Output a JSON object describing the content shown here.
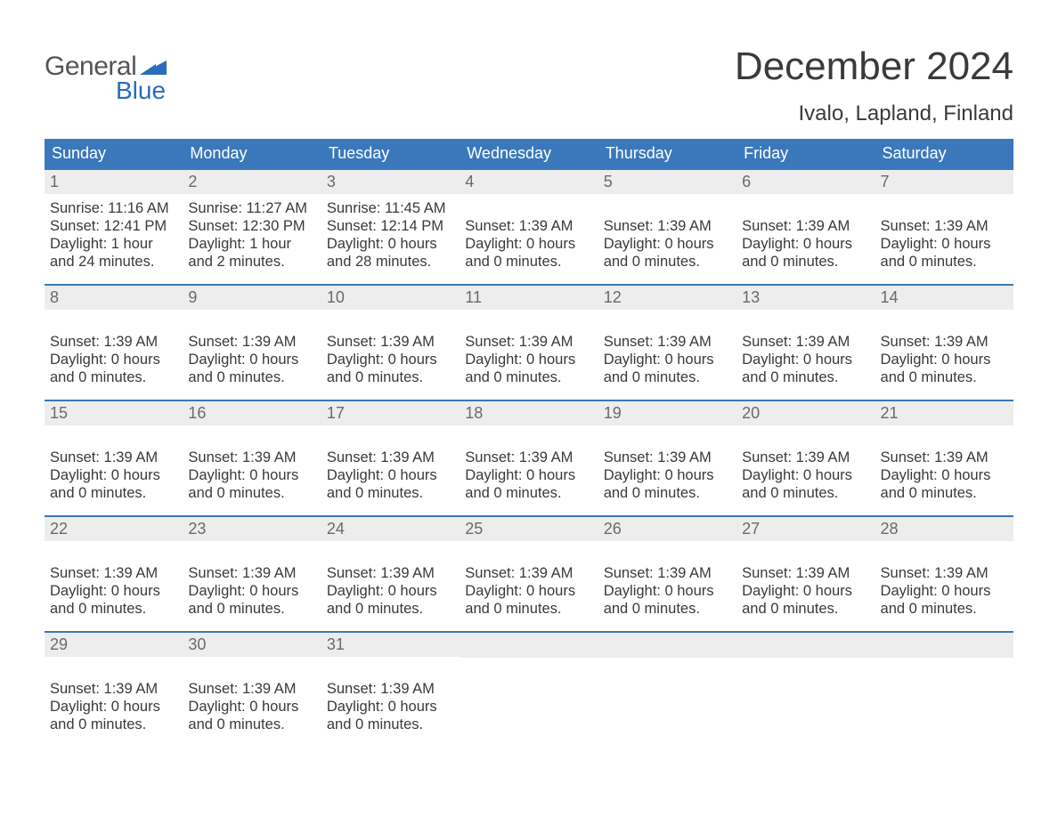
{
  "logo": {
    "text_top": "General",
    "text_bottom": "Blue",
    "flag_color": "#2a6db8"
  },
  "title": "December 2024",
  "location": "Ivalo, Lapland, Finland",
  "colors": {
    "header_bg": "#3b78bb",
    "header_text": "#ffffff",
    "daynum_bg": "#ededed",
    "daynum_text": "#6a6a6a",
    "body_text": "#3a3a3a",
    "row_border": "#3b78bb"
  },
  "typography": {
    "title_fontsize": 44,
    "location_fontsize": 24,
    "dow_fontsize": 18,
    "daynum_fontsize": 18,
    "body_fontsize": 16.5
  },
  "days_of_week": [
    "Sunday",
    "Monday",
    "Tuesday",
    "Wednesday",
    "Thursday",
    "Friday",
    "Saturday"
  ],
  "weeks": [
    [
      {
        "num": "1",
        "lines": [
          "Sunrise: 11:16 AM",
          "Sunset: 12:41 PM",
          "Daylight: 1 hour and 24 minutes."
        ]
      },
      {
        "num": "2",
        "lines": [
          "Sunrise: 11:27 AM",
          "Sunset: 12:30 PM",
          "Daylight: 1 hour and 2 minutes."
        ]
      },
      {
        "num": "3",
        "lines": [
          "Sunrise: 11:45 AM",
          "Sunset: 12:14 PM",
          "Daylight: 0 hours and 28 minutes."
        ]
      },
      {
        "num": "4",
        "lines": [
          "",
          "Sunset: 1:39 AM",
          "Daylight: 0 hours and 0 minutes."
        ]
      },
      {
        "num": "5",
        "lines": [
          "",
          "Sunset: 1:39 AM",
          "Daylight: 0 hours and 0 minutes."
        ]
      },
      {
        "num": "6",
        "lines": [
          "",
          "Sunset: 1:39 AM",
          "Daylight: 0 hours and 0 minutes."
        ]
      },
      {
        "num": "7",
        "lines": [
          "",
          "Sunset: 1:39 AM",
          "Daylight: 0 hours and 0 minutes."
        ]
      }
    ],
    [
      {
        "num": "8",
        "lines": [
          "",
          "Sunset: 1:39 AM",
          "Daylight: 0 hours and 0 minutes."
        ]
      },
      {
        "num": "9",
        "lines": [
          "",
          "Sunset: 1:39 AM",
          "Daylight: 0 hours and 0 minutes."
        ]
      },
      {
        "num": "10",
        "lines": [
          "",
          "Sunset: 1:39 AM",
          "Daylight: 0 hours and 0 minutes."
        ]
      },
      {
        "num": "11",
        "lines": [
          "",
          "Sunset: 1:39 AM",
          "Daylight: 0 hours and 0 minutes."
        ]
      },
      {
        "num": "12",
        "lines": [
          "",
          "Sunset: 1:39 AM",
          "Daylight: 0 hours and 0 minutes."
        ]
      },
      {
        "num": "13",
        "lines": [
          "",
          "Sunset: 1:39 AM",
          "Daylight: 0 hours and 0 minutes."
        ]
      },
      {
        "num": "14",
        "lines": [
          "",
          "Sunset: 1:39 AM",
          "Daylight: 0 hours and 0 minutes."
        ]
      }
    ],
    [
      {
        "num": "15",
        "lines": [
          "",
          "Sunset: 1:39 AM",
          "Daylight: 0 hours and 0 minutes."
        ]
      },
      {
        "num": "16",
        "lines": [
          "",
          "Sunset: 1:39 AM",
          "Daylight: 0 hours and 0 minutes."
        ]
      },
      {
        "num": "17",
        "lines": [
          "",
          "Sunset: 1:39 AM",
          "Daylight: 0 hours and 0 minutes."
        ]
      },
      {
        "num": "18",
        "lines": [
          "",
          "Sunset: 1:39 AM",
          "Daylight: 0 hours and 0 minutes."
        ]
      },
      {
        "num": "19",
        "lines": [
          "",
          "Sunset: 1:39 AM",
          "Daylight: 0 hours and 0 minutes."
        ]
      },
      {
        "num": "20",
        "lines": [
          "",
          "Sunset: 1:39 AM",
          "Daylight: 0 hours and 0 minutes."
        ]
      },
      {
        "num": "21",
        "lines": [
          "",
          "Sunset: 1:39 AM",
          "Daylight: 0 hours and 0 minutes."
        ]
      }
    ],
    [
      {
        "num": "22",
        "lines": [
          "",
          "Sunset: 1:39 AM",
          "Daylight: 0 hours and 0 minutes."
        ]
      },
      {
        "num": "23",
        "lines": [
          "",
          "Sunset: 1:39 AM",
          "Daylight: 0 hours and 0 minutes."
        ]
      },
      {
        "num": "24",
        "lines": [
          "",
          "Sunset: 1:39 AM",
          "Daylight: 0 hours and 0 minutes."
        ]
      },
      {
        "num": "25",
        "lines": [
          "",
          "Sunset: 1:39 AM",
          "Daylight: 0 hours and 0 minutes."
        ]
      },
      {
        "num": "26",
        "lines": [
          "",
          "Sunset: 1:39 AM",
          "Daylight: 0 hours and 0 minutes."
        ]
      },
      {
        "num": "27",
        "lines": [
          "",
          "Sunset: 1:39 AM",
          "Daylight: 0 hours and 0 minutes."
        ]
      },
      {
        "num": "28",
        "lines": [
          "",
          "Sunset: 1:39 AM",
          "Daylight: 0 hours and 0 minutes."
        ]
      }
    ],
    [
      {
        "num": "29",
        "lines": [
          "",
          "Sunset: 1:39 AM",
          "Daylight: 0 hours and 0 minutes."
        ]
      },
      {
        "num": "30",
        "lines": [
          "",
          "Sunset: 1:39 AM",
          "Daylight: 0 hours and 0 minutes."
        ]
      },
      {
        "num": "31",
        "lines": [
          "",
          "Sunset: 1:39 AM",
          "Daylight: 0 hours and 0 minutes."
        ]
      },
      null,
      null,
      null,
      null
    ]
  ]
}
